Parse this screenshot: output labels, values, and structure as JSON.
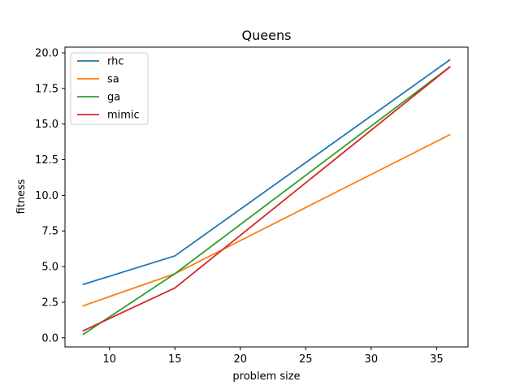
{
  "chart_data": {
    "type": "line",
    "title": "Queens",
    "xlabel": "problem size",
    "ylabel": "fitness",
    "xlim": [
      6.6,
      37.4
    ],
    "ylim": [
      -0.64,
      20.4
    ],
    "xticks": [
      10,
      15,
      20,
      25,
      30,
      35
    ],
    "yticks": [
      0.0,
      2.5,
      5.0,
      7.5,
      10.0,
      12.5,
      15.0,
      17.5,
      20.0
    ],
    "xtick_labels": [
      "10",
      "15",
      "20",
      "25",
      "30",
      "35"
    ],
    "ytick_labels": [
      "0.0",
      "2.5",
      "5.0",
      "7.5",
      "10.0",
      "12.5",
      "15.0",
      "17.5",
      "20.0"
    ],
    "grid": false,
    "legend_position": "upper left",
    "x": [
      8,
      15,
      36
    ],
    "series": [
      {
        "name": "rhc",
        "color": "#1f77b4",
        "values": [
          3.75,
          5.75,
          19.5
        ]
      },
      {
        "name": "sa",
        "color": "#ff7f0e",
        "values": [
          2.25,
          4.5,
          14.25
        ]
      },
      {
        "name": "ga",
        "color": "#2ca02c",
        "values": [
          0.25,
          4.5,
          19.0
        ]
      },
      {
        "name": "mimic",
        "color": "#d62728",
        "values": [
          0.5,
          3.5,
          19.0
        ]
      }
    ]
  }
}
